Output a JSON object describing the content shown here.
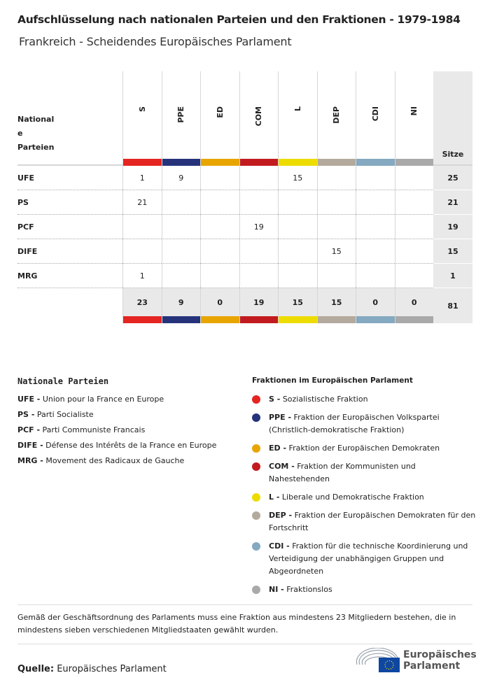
{
  "title": "Aufschlüsselung nach nationalen Parteien und den Fraktionen - 1979-1984",
  "subtitle": "Frankreich - Scheidendes Europäisches Parlament",
  "chart_data": {
    "type": "table",
    "row_header": [
      "National",
      "e",
      "Parteien"
    ],
    "total_header": "Sitze",
    "groups": [
      {
        "code": "S",
        "color": "#e52521"
      },
      {
        "code": "PPE",
        "color": "#26337b"
      },
      {
        "code": "ED",
        "color": "#e8a500"
      },
      {
        "code": "COM",
        "color": "#c21b1f"
      },
      {
        "code": "L",
        "color": "#eddc00"
      },
      {
        "code": "DEP",
        "color": "#b3aa9d"
      },
      {
        "code": "CDI",
        "color": "#84a9c0"
      },
      {
        "code": "NI",
        "color": "#a9a9a9"
      }
    ],
    "rows": [
      {
        "party": "UFE",
        "values": [
          "1",
          "9",
          "",
          "",
          "15",
          "",
          "",
          ""
        ],
        "total": "25"
      },
      {
        "party": "PS",
        "values": [
          "21",
          "",
          "",
          "",
          "",
          "",
          "",
          ""
        ],
        "total": "21"
      },
      {
        "party": "PCF",
        "values": [
          "",
          "",
          "",
          "19",
          "",
          "",
          "",
          ""
        ],
        "total": "19"
      },
      {
        "party": "DIFE",
        "values": [
          "",
          "",
          "",
          "",
          "",
          "15",
          "",
          ""
        ],
        "total": "15"
      },
      {
        "party": "MRG",
        "values": [
          "1",
          "",
          "",
          "",
          "",
          "",
          "",
          ""
        ],
        "total": "1"
      }
    ],
    "totals": [
      "23",
      "9",
      "0",
      "19",
      "15",
      "15",
      "0",
      "0"
    ],
    "grand_total": "81"
  },
  "legend": {
    "parties_title": "Nationale Parteien",
    "parties": [
      {
        "code": "UFE -",
        "name": " Union pour la France en Europe"
      },
      {
        "code": "PS -",
        "name": " Parti Socialiste"
      },
      {
        "code": "PCF -",
        "name": " Parti Communiste Francais"
      },
      {
        "code": "DIFE -",
        "name": " Défense des Intérêts de la France en Europe"
      },
      {
        "code": "MRG -",
        "name": " Movement des Radicaux de Gauche"
      }
    ],
    "groups_title": "Fraktionen im Europäischen Parlament",
    "groups": [
      {
        "code": "S -",
        "name": " Sozialistische Fraktion"
      },
      {
        "code": "PPE -",
        "name": " Fraktion der Europäischen Volkspartei (Christlich-demokratische Fraktion)"
      },
      {
        "code": "ED -",
        "name": " Fraktion der Europäischen Demokraten"
      },
      {
        "code": "COM -",
        "name": " Fraktion der Kommunisten und Nahestehenden"
      },
      {
        "code": "L -",
        "name": " Liberale und Demokratische Fraktion"
      },
      {
        "code": "DEP -",
        "name": " Fraktion der Europäischen Demokraten für den Fortschritt"
      },
      {
        "code": "CDI -",
        "name": " Fraktion für die technische Koordinierung und Verteidigung der unabhängigen Gruppen und Abgeordneten"
      },
      {
        "code": "NI -",
        "name": " Fraktionslos"
      }
    ]
  },
  "note": "Gemäß der Geschäftsordnung des Parlaments muss eine Fraktion aus mindestens 23 Mitgliedern bestehen, die in mindestens sieben verschiedenen Mitgliedstaaten gewählt wurden.",
  "source_label": "Quelle:",
  "source": " Europäisches Parlament",
  "logo": [
    "Europäisches",
    "Parlament"
  ]
}
